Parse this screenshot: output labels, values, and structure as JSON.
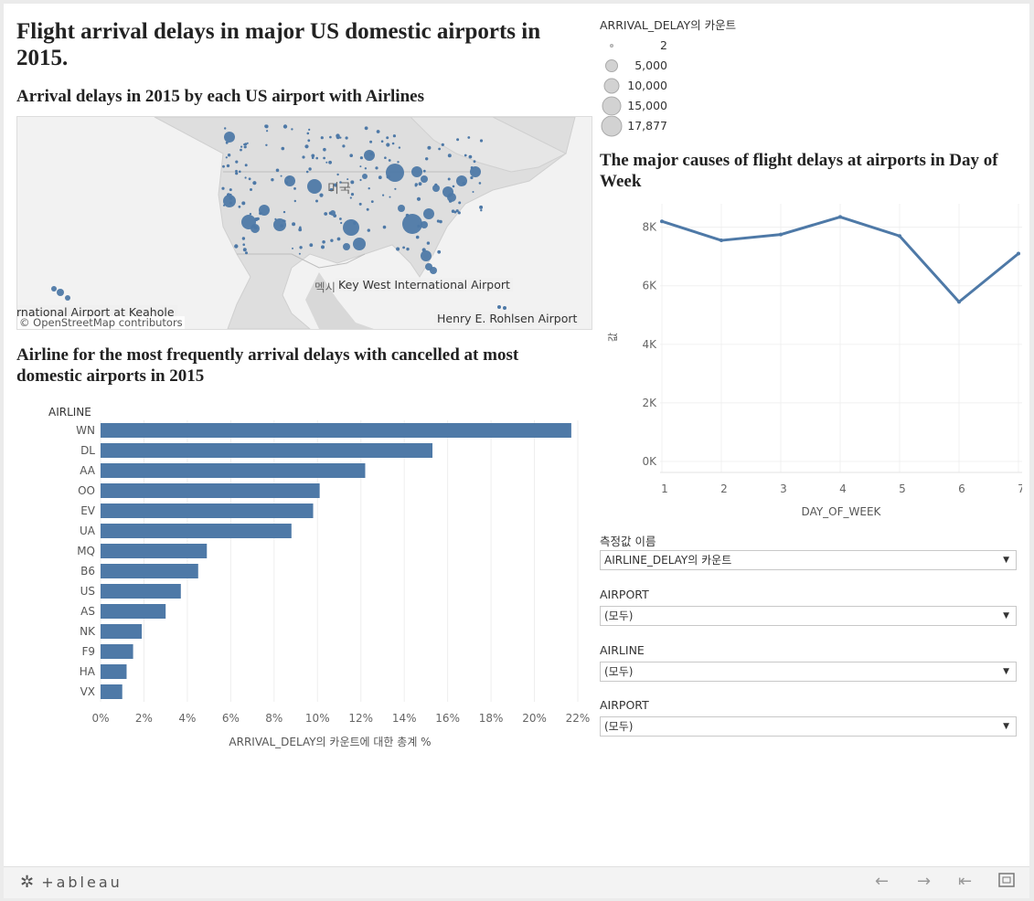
{
  "dashboard": {
    "title": "Flight arrival delays in major US domestic airports in 2015.",
    "map_title": "Arrival delays in 2015 by each US airport with Airlines",
    "bar_title": "Airline for the most frequently arrival delays with cancelled at most domestic airports in 2015",
    "line_title": "The major causes of flight delays at airports in Day of Week"
  },
  "map": {
    "labels": {
      "country": "미국",
      "mexico": "멕시",
      "keywest": "Key West International Airport",
      "keahole": "rnational Airport at Keahole",
      "rohlsen": "Henry E. Rohlsen Airport",
      "attribution": "© OpenStreetMap contributors"
    },
    "dot_color": "#4e79a7"
  },
  "size_legend": {
    "title": "ARRIVAL_DELAY의 카운트",
    "items": [
      {
        "label": "2",
        "value": 2
      },
      {
        "label": "5,000",
        "value": 5000
      },
      {
        "label": "10,000",
        "value": 10000
      },
      {
        "label": "15,000",
        "value": 15000
      },
      {
        "label": "17,877",
        "value": 17877
      }
    ]
  },
  "chart_data": [
    {
      "type": "bar",
      "orientation": "horizontal",
      "title": "Airline for the most frequently arrival delays with cancelled at most domestic airports in 2015",
      "ylabel": "AIRLINE",
      "xlabel": "ARRIVAL_DELAY의 카운트에 대한 총계 %",
      "categories": [
        "WN",
        "DL",
        "AA",
        "OO",
        "EV",
        "UA",
        "MQ",
        "B6",
        "US",
        "AS",
        "NK",
        "F9",
        "HA",
        "VX"
      ],
      "values": [
        21.7,
        15.3,
        12.2,
        10.1,
        9.8,
        8.8,
        4.9,
        4.5,
        3.7,
        3.0,
        1.9,
        1.5,
        1.2,
        1.0
      ],
      "xlim": [
        0,
        22
      ],
      "xticks": [
        "0%",
        "2%",
        "4%",
        "6%",
        "8%",
        "10%",
        "12%",
        "14%",
        "16%",
        "18%",
        "20%",
        "22%"
      ],
      "color": "#4e79a7",
      "grid": true
    },
    {
      "type": "line",
      "title": "The major causes of flight delays at airports in Day of Week",
      "xlabel": "DAY_OF_WEEK",
      "ylabel": "값",
      "x": [
        1,
        2,
        3,
        4,
        5,
        6,
        7
      ],
      "values": [
        8200,
        7550,
        7750,
        8350,
        7700,
        5450,
        7100
      ],
      "ylim": [
        0,
        8800
      ],
      "yticks": [
        "0K",
        "2K",
        "4K",
        "6K",
        "8K"
      ],
      "color": "#4e79a7",
      "grid": true
    }
  ],
  "filters": [
    {
      "label": "측정값 이름",
      "value": "AIRLINE_DELAY의 카운트"
    },
    {
      "label": "AIRPORT",
      "value": "(모두)"
    },
    {
      "label": "AIRLINE",
      "value": "(모두)"
    },
    {
      "label": "AIRPORT",
      "value": "(모두)"
    }
  ],
  "footer": {
    "logo": "+ableau",
    "icons": [
      "back-arrow-icon",
      "forward-arrow-icon",
      "reset-icon",
      "fullscreen-icon"
    ]
  }
}
